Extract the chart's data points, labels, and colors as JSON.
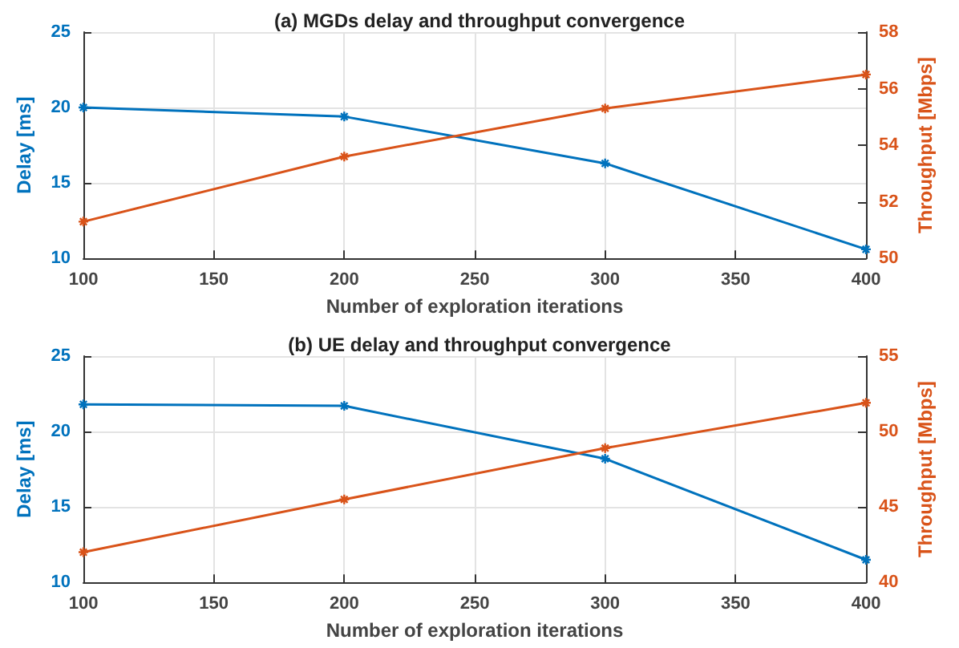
{
  "chart_data": [
    {
      "type": "line",
      "title": "(a) MGDs delay and throughput convergence",
      "xlabel": "Number of exploration iterations",
      "ylabel": "Delay [ms]",
      "y2label": "Throughput [Mbps]",
      "x": [
        100,
        200,
        300,
        400
      ],
      "xlim": [
        100,
        400
      ],
      "xticks": [
        100,
        150,
        200,
        250,
        300,
        350,
        400
      ],
      "ylim": [
        10,
        25
      ],
      "yticks": [
        10,
        15,
        20,
        25
      ],
      "y2lim": [
        50,
        58
      ],
      "y2ticks": [
        50,
        52,
        54,
        56,
        58
      ],
      "grid": true,
      "marker": "cross",
      "line_style": "solid",
      "series": [
        {
          "color": "#0072bd",
          "values": [
            20.0,
            19.4,
            16.3,
            10.6
          ]
        },
        {
          "color": "#d95319",
          "axis": "y2",
          "values": [
            51.3,
            53.6,
            55.3,
            56.5
          ]
        }
      ]
    },
    {
      "type": "line",
      "title": "(b) UE delay and throughput convergence",
      "xlabel": "Number of exploration iterations",
      "ylabel": "Delay [ms]",
      "y2label": "Throughput [Mbps]",
      "x": [
        100,
        200,
        300,
        400
      ],
      "xlim": [
        100,
        400
      ],
      "xticks": [
        100,
        150,
        200,
        250,
        300,
        350,
        400
      ],
      "ylim": [
        10,
        25
      ],
      "yticks": [
        10,
        15,
        20,
        25
      ],
      "y2lim": [
        40,
        55
      ],
      "y2ticks": [
        40,
        45,
        50,
        55
      ],
      "grid": true,
      "marker": "cross",
      "line_style": "solid",
      "series": [
        {
          "color": "#0072bd",
          "values": [
            21.8,
            21.7,
            18.2,
            11.5
          ]
        },
        {
          "color": "#d95319",
          "axis": "y2",
          "values": [
            42.0,
            45.5,
            48.9,
            51.9
          ]
        }
      ]
    }
  ]
}
